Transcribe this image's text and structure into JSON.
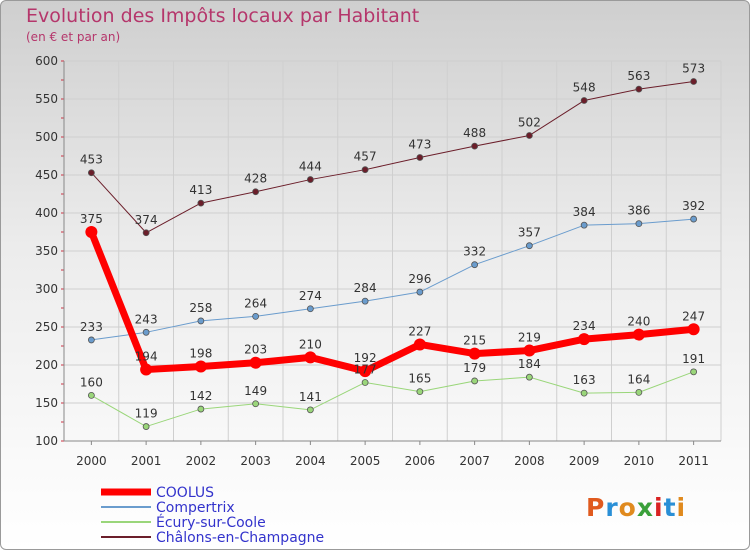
{
  "chart_data": {
    "type": "line",
    "title": "Evolution des Impôts locaux par Habitant",
    "subtitle": "(en € et par an)",
    "x": [
      "2000",
      "2001",
      "2002",
      "2003",
      "2004",
      "2005",
      "2006",
      "2007",
      "2008",
      "2009",
      "2010",
      "2011"
    ],
    "ylim": [
      100,
      600
    ],
    "yticks": [
      100,
      150,
      200,
      250,
      300,
      350,
      400,
      450,
      500,
      550,
      600
    ],
    "grid": true,
    "legend_position": "bottom-left",
    "series": [
      {
        "name": "Châlons-en-Champagne",
        "color": "#6b1e2a",
        "values": [
          453,
          374,
          413,
          428,
          444,
          457,
          473,
          488,
          502,
          548,
          563,
          573
        ],
        "width": 1
      },
      {
        "name": "Compertrix",
        "color": "#6a9ccd",
        "values": [
          233,
          243,
          258,
          264,
          274,
          284,
          296,
          332,
          357,
          384,
          386,
          392
        ],
        "width": 1
      },
      {
        "name": "Écury-sur-Coole",
        "color": "#9ad67a",
        "values": [
          160,
          119,
          142,
          149,
          141,
          177,
          165,
          179,
          184,
          163,
          164,
          191
        ],
        "width": 1
      },
      {
        "name": "COOLUS",
        "color": "#ff0000",
        "values": [
          375,
          194,
          198,
          203,
          210,
          192,
          227,
          215,
          219,
          234,
          240,
          247
        ],
        "width": 7
      }
    ],
    "data_labels": {
      "COOLUS": [
        "375",
        "194",
        "198",
        "203",
        "210",
        "192",
        "227",
        "215",
        "219",
        "234",
        "240",
        "247"
      ],
      "Compertrix": [
        "233",
        "243",
        "258",
        "264",
        "274",
        "284",
        "296",
        "332",
        "357",
        "384",
        "386",
        "392"
      ],
      "Écury-sur-Coole": [
        "160",
        "119",
        "142",
        "149",
        "141",
        "177",
        "165",
        "179",
        "184",
        "163",
        "164",
        "191"
      ],
      "Châlons-en-Champagne": [
        "453",
        "374",
        "413",
        "428",
        "444",
        "457",
        "473",
        "488",
        "502",
        "548",
        "563",
        "573"
      ]
    },
    "legend": [
      "COOLUS",
      "Compertrix",
      "Écury-sur-Coole",
      "Châlons-en-Champagne"
    ]
  },
  "logo": {
    "text": "Proxiti",
    "colors": [
      "#e05a1e",
      "#2a8fd6",
      "#e08a1e",
      "#3aa03a",
      "#d92222",
      "#2a8fd6",
      "#e08a1e"
    ]
  }
}
